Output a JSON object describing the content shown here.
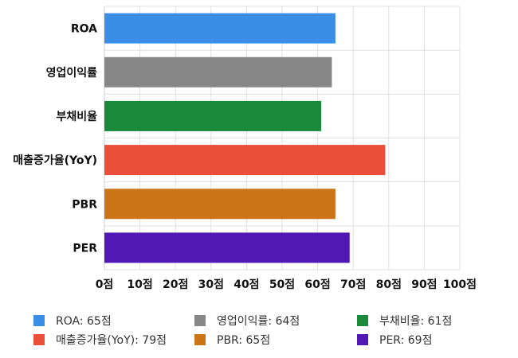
{
  "chart_data": {
    "type": "bar",
    "orientation": "horizontal",
    "categories": [
      "ROA",
      "영업이익률",
      "부채비율",
      "매출증가율(YoY)",
      "PBR",
      "PER"
    ],
    "values": [
      65,
      64,
      61,
      79,
      65,
      69
    ],
    "colors": [
      "#3a8ee6",
      "#878787",
      "#1a8a3a",
      "#ea4f3b",
      "#cc7418",
      "#5018b4"
    ],
    "xlim": [
      0,
      100
    ],
    "x_ticks": [
      "0점",
      "10점",
      "20점",
      "30점",
      "40점",
      "50점",
      "60점",
      "70점",
      "80점",
      "90점",
      "100점"
    ],
    "grid": true,
    "legend_position": "bottom",
    "legend": [
      "ROA: 65점",
      "영업이익률: 64점",
      "부채비율: 61점",
      "매출증가율(YoY): 79점",
      "PBR: 65점",
      "PER: 69점"
    ]
  }
}
